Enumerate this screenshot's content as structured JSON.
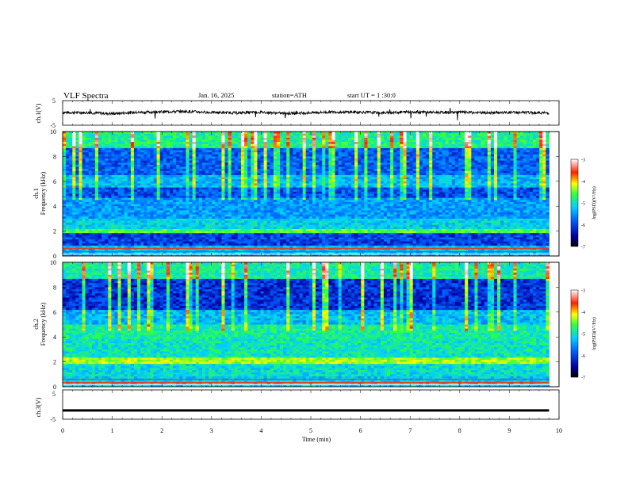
{
  "header": {
    "title": "VLF  Spectra",
    "date": "Jan. 16, 2025",
    "station": "station=ATH",
    "start": "start  UT  =    1  :30:0"
  },
  "chart_data": [
    {
      "type": "line",
      "name": "ch1_waveform",
      "ylabel": "ch.1(V)",
      "ylim": [
        -5,
        5
      ],
      "yticks": [
        "5",
        "-5"
      ],
      "x": [
        0,
        0.5,
        1,
        1.5,
        2,
        2.5,
        3,
        3.5,
        4,
        4.5,
        5,
        5.5,
        6,
        6.5,
        7,
        7.5,
        8,
        8.5,
        9,
        9.5,
        9.8
      ],
      "y": [
        0.2,
        0.1,
        -0.3,
        0.2,
        0.5,
        0.6,
        0.2,
        0.0,
        0.3,
        -0.2,
        0.1,
        0.4,
        0.3,
        0.0,
        0.5,
        0.2,
        0.3,
        0.0,
        0.2,
        0.1,
        0.0
      ]
    },
    {
      "type": "heatmap",
      "name": "ch1_spectrogram",
      "ylabel": "ch.1\nFrequency  (kHz)",
      "ylim": [
        0,
        10
      ],
      "yticks": [
        "0",
        "2",
        "4",
        "6",
        "8",
        "10"
      ],
      "colorbar": {
        "label": "log(PSD)(V²/Hz)",
        "range": [
          -7,
          -3
        ],
        "ticks": [
          "-3",
          "-4",
          "-5",
          "-6",
          "-7"
        ]
      }
    },
    {
      "type": "heatmap",
      "name": "ch2_spectrogram",
      "ylabel": "ch.2\nFrequency  (kHz)",
      "ylim": [
        0,
        10
      ],
      "yticks": [
        "0",
        "2",
        "4",
        "6",
        "8",
        "10"
      ],
      "colorbar": {
        "label": "log(PSD)(V²/Hz)",
        "range": [
          -7,
          -3
        ],
        "ticks": [
          "-3",
          "-4",
          "-5",
          "-6",
          "-7"
        ]
      }
    },
    {
      "type": "line",
      "name": "ch3_waveform",
      "ylabel": "ch.3(V)",
      "ylim": [
        -5,
        5
      ],
      "yticks": [
        "5",
        "-5"
      ],
      "x": [
        0,
        9.8
      ],
      "y": [
        -2,
        -2
      ]
    }
  ],
  "xaxis": {
    "label": "Time  (min)",
    "ticks": [
      "0",
      "1",
      "2",
      "3",
      "4",
      "5",
      "6",
      "7",
      "8",
      "9",
      "10"
    ],
    "xlim": [
      0,
      10
    ]
  }
}
